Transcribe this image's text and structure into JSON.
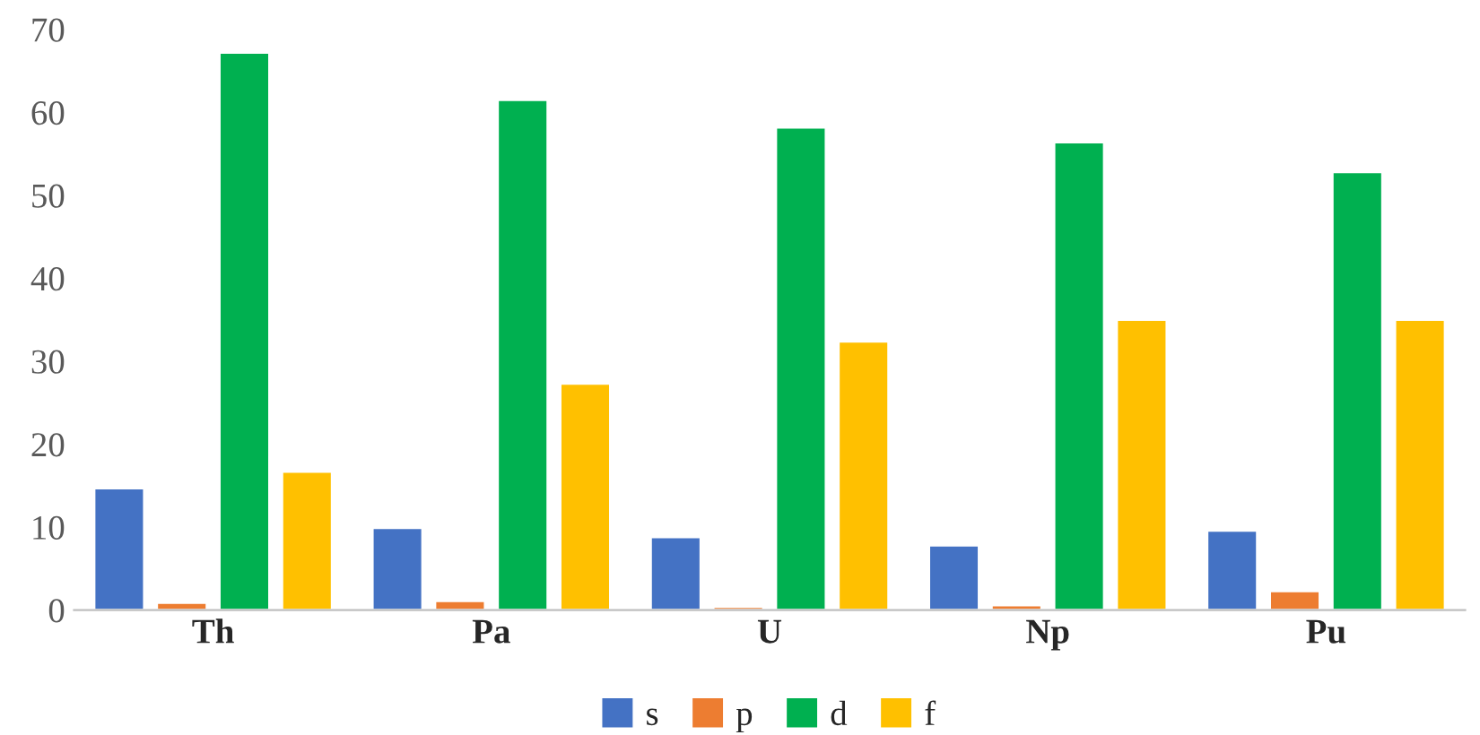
{
  "chart_data": {
    "type": "bar",
    "categories": [
      "Th",
      "Pa",
      "U",
      "Np",
      "Pu"
    ],
    "series": [
      {
        "name": "s",
        "color": "#4472c4",
        "values": [
          14.7,
          9.9,
          8.8,
          7.8,
          9.6
        ]
      },
      {
        "name": "p",
        "color": "#ed7d31",
        "values": [
          0.9,
          1.1,
          0.4,
          0.6,
          2.3
        ]
      },
      {
        "name": "d",
        "color": "#00b050",
        "values": [
          67.2,
          61.5,
          58.2,
          56.4,
          52.8
        ]
      },
      {
        "name": "f",
        "color": "#ffc000",
        "values": [
          16.7,
          27.3,
          32.4,
          35.0,
          35.0
        ]
      }
    ],
    "ylim": [
      0,
      70
    ],
    "yticks": [
      0,
      10,
      20,
      30,
      40,
      50,
      60,
      70
    ],
    "legend": "bottom",
    "grid": false
  }
}
